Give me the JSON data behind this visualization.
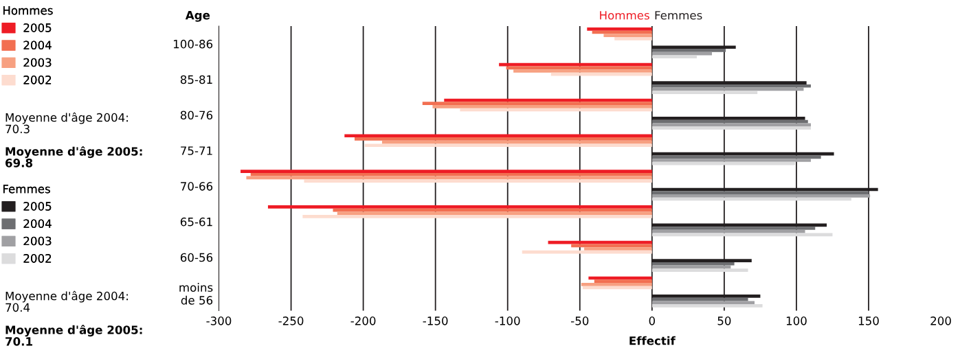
{
  "chart_data": {
    "type": "bar",
    "orientation": "horizontal",
    "categories": [
      "100-86",
      "85-81",
      "80-76",
      "75-71",
      "70-66",
      "65-61",
      "60-56",
      "moins\nde 56"
    ],
    "series": [
      {
        "name": "2005",
        "color": "#ee1c25",
        "values": [
          -45,
          -106,
          -144,
          -213,
          -285,
          -266,
          -72,
          -44
        ]
      },
      {
        "name": "2004",
        "color": "#f26f51",
        "values": [
          -41.5,
          -101,
          -159,
          -206,
          -278,
          -221,
          -56,
          -40
        ]
      },
      {
        "name": "2003",
        "color": "#f7a081",
        "values": [
          -33.5,
          -96,
          -152,
          -187,
          -281,
          -218,
          -47,
          -49
        ]
      },
      {
        "name": "2002",
        "color": "#fddccf",
        "values": [
          -26,
          -70,
          -133,
          -199,
          -241,
          -242,
          -90,
          -48
        ]
      },
      {
        "name": "2005",
        "color": "#231f20",
        "values": [
          58,
          107,
          106,
          126,
          156.5,
          121,
          69,
          75
        ]
      },
      {
        "name": "2004",
        "color": "#6d6e71",
        "values": [
          51,
          110,
          108,
          117,
          150,
          113,
          57,
          66.5
        ]
      },
      {
        "name": "2003",
        "color": "#a0a0a3",
        "values": [
          41.5,
          105,
          110,
          110,
          151,
          106,
          54.5,
          71
        ]
      },
      {
        "name": "2002",
        "color": "#dcdcdd",
        "values": [
          31,
          73,
          110,
          99,
          138,
          125,
          66.5,
          76.5
        ]
      }
    ],
    "xlim": [
      -300,
      200
    ],
    "xticks": [
      -300,
      -250,
      -200,
      -150,
      -100,
      -50,
      0,
      50,
      100,
      150,
      200
    ],
    "xlabel": "Effectif",
    "ylabel": "Age",
    "grid": "x",
    "legend": "left",
    "annotations": [
      "Hommes",
      "Femmes",
      "Hommes",
      "Moyenne d'âge 2004:\n70.3",
      "Moyenne d'âge 2005:\n69.8",
      "Femmes",
      "Moyenne d'âge 2004:\n70.4",
      "Moyenne d'âge 2005:\n70.1"
    ]
  }
}
